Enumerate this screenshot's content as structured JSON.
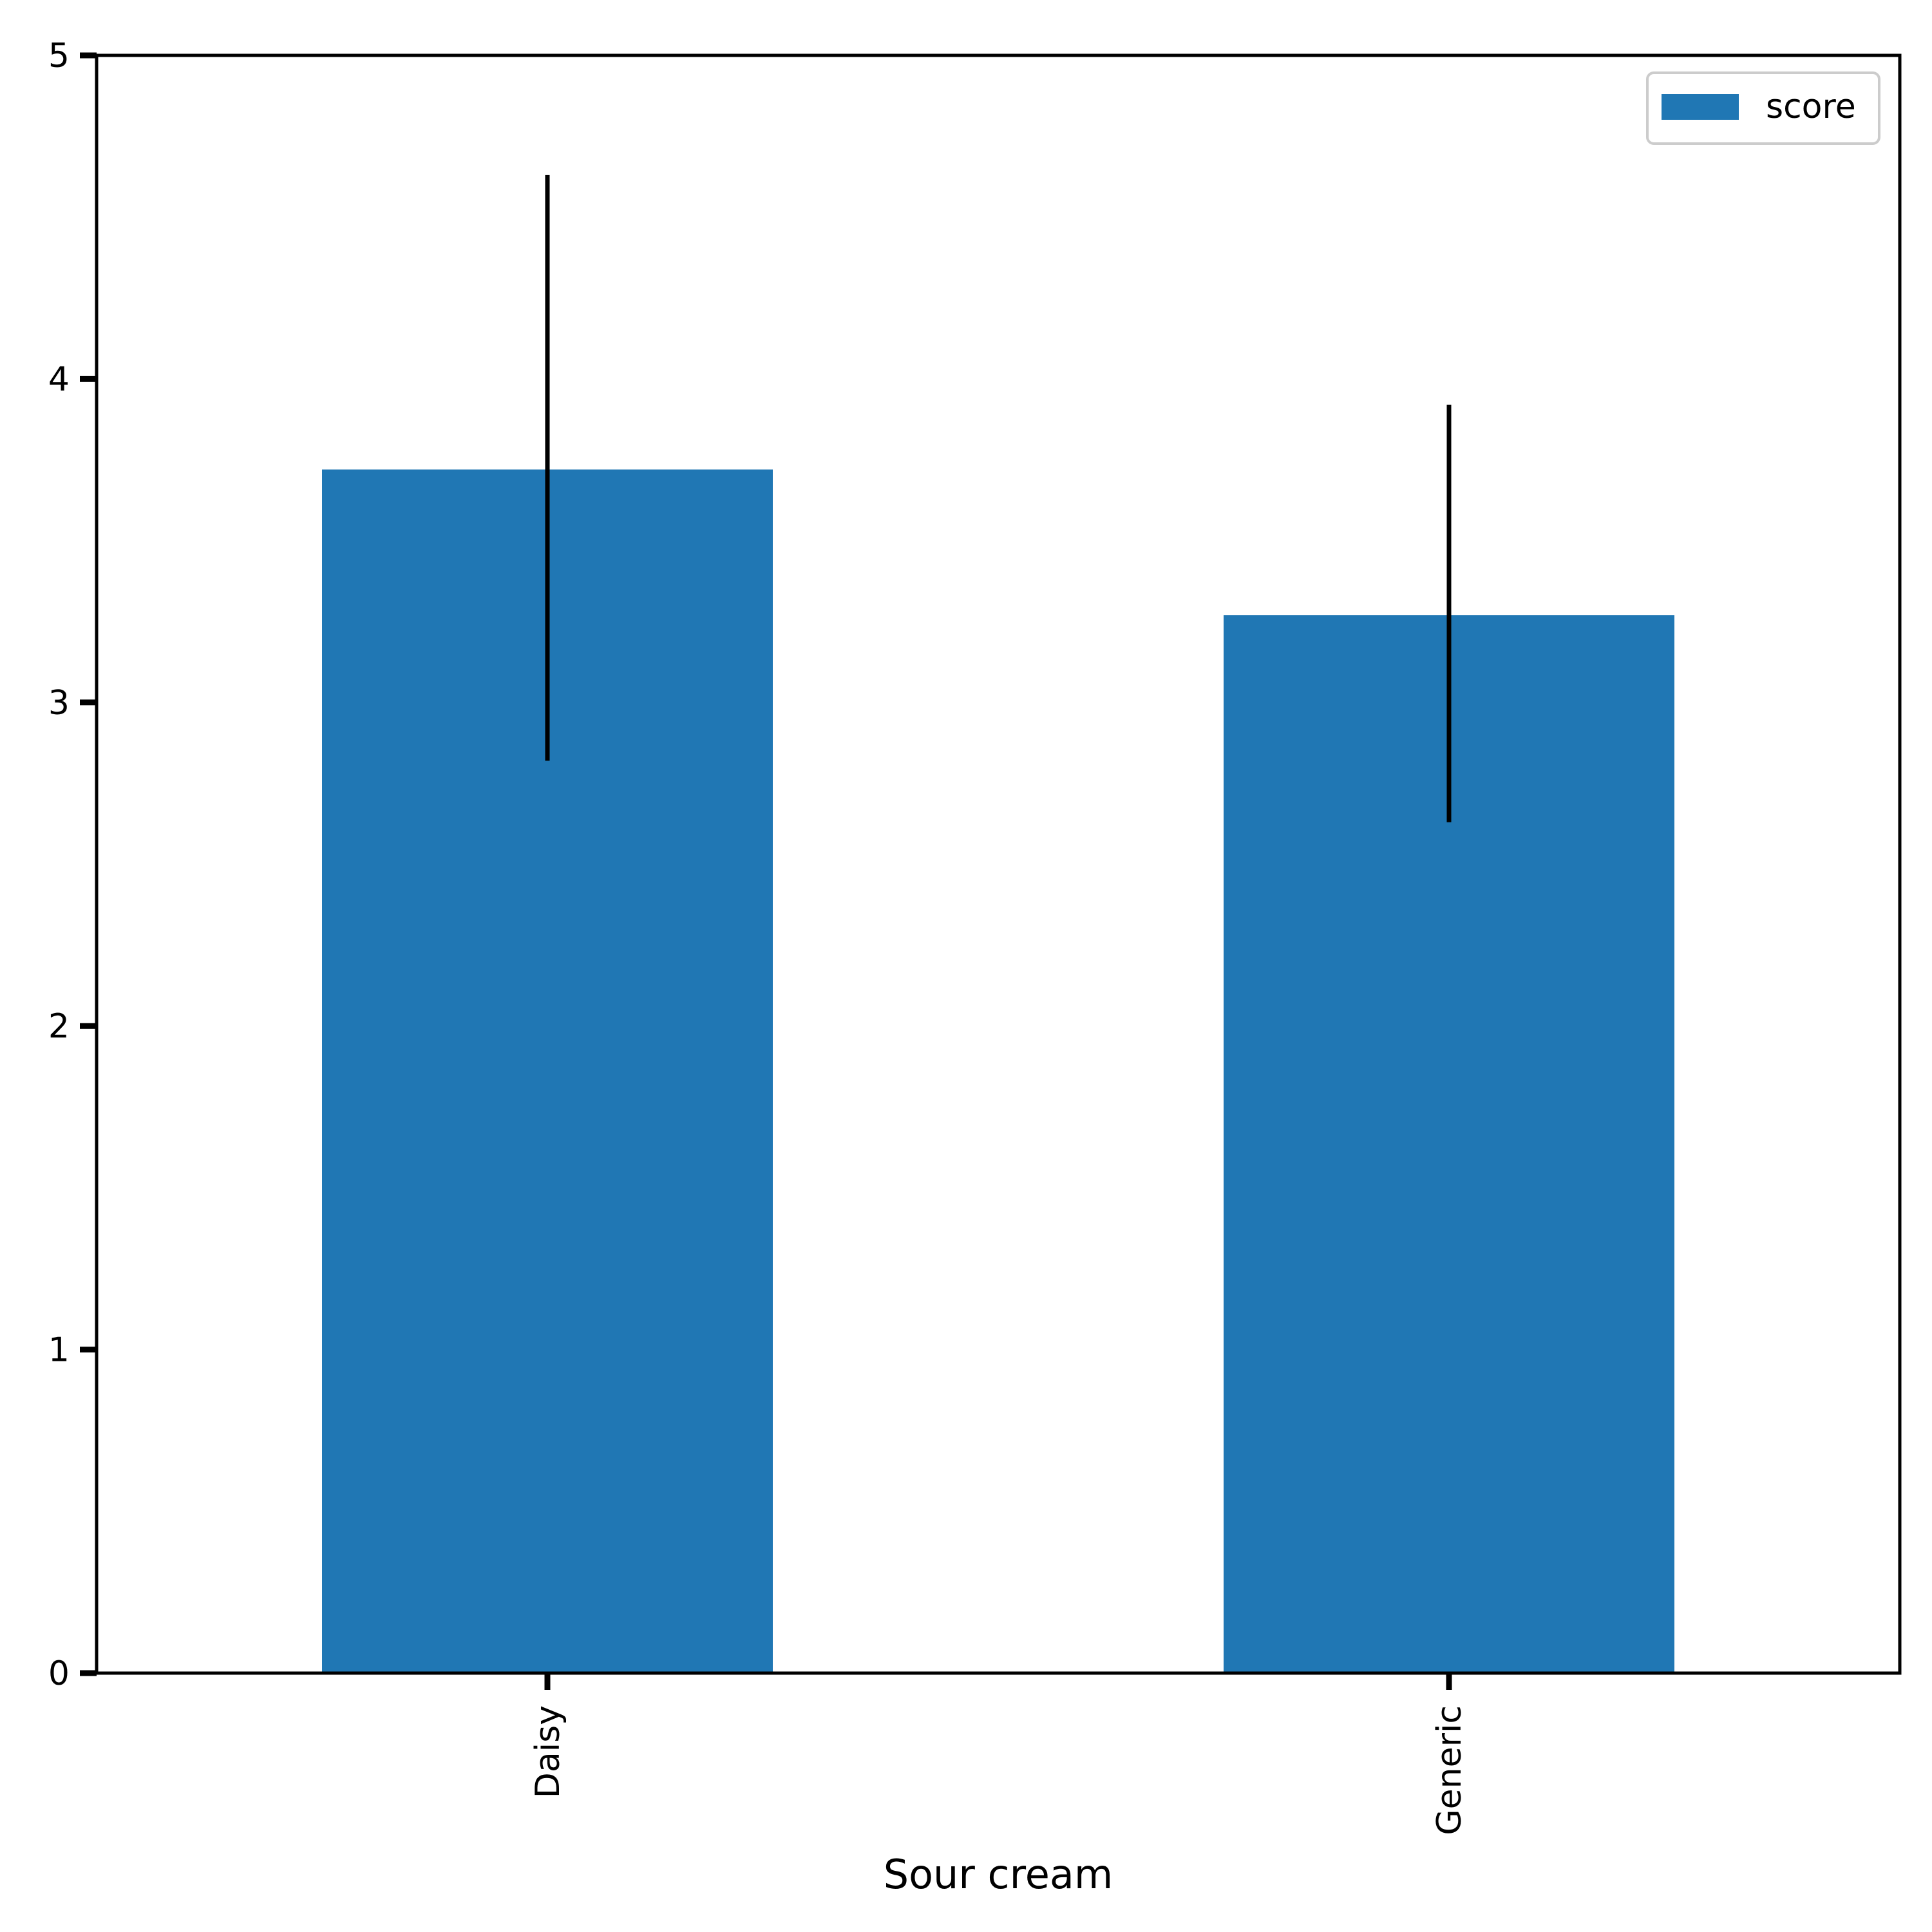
{
  "chart_data": {
    "type": "bar",
    "categories": [
      "Daisy",
      "Generic"
    ],
    "series": [
      {
        "name": "score",
        "color": "#2077b4",
        "values": [
          3.72,
          3.27
        ],
        "error_low": [
          2.82,
          2.63
        ],
        "error_high": [
          4.63,
          3.92
        ]
      }
    ],
    "xlabel": "Sour cream",
    "ylabel": "",
    "ylim": [
      0,
      5
    ],
    "yticks": [
      "0",
      "1",
      "2",
      "3",
      "4",
      "5"
    ],
    "grid": false,
    "legend_position": "top-right",
    "category_label_rotation": "vertical"
  }
}
